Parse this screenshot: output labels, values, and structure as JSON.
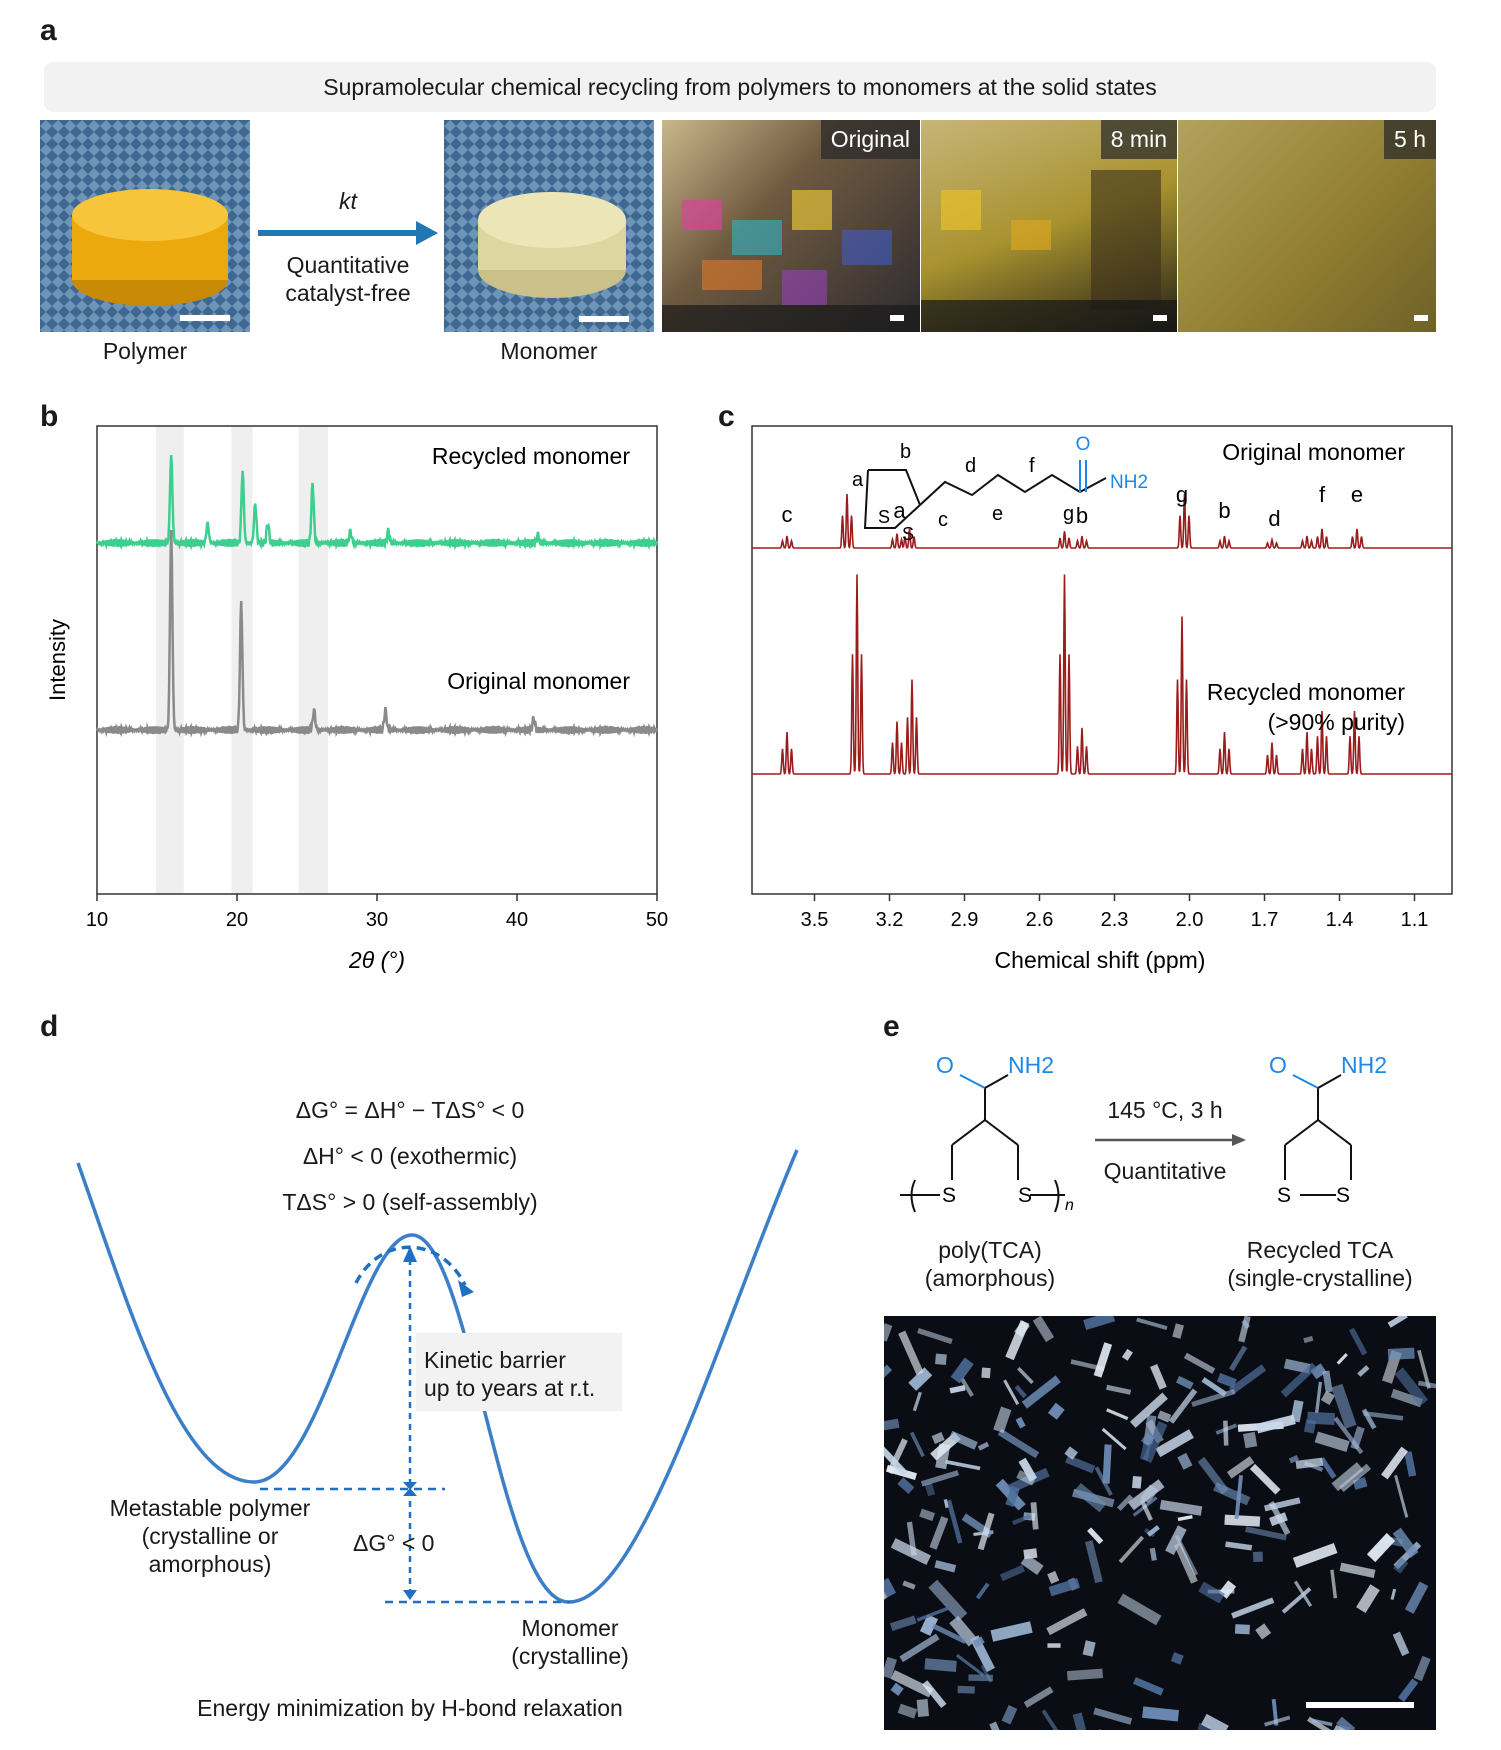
{
  "panel_labels": {
    "a": "a",
    "b": "b",
    "c": "c",
    "d": "d",
    "e": "e"
  },
  "panel_a": {
    "banner": "Supramolecular chemical recycling from polymers to monomers at the solid states",
    "arrow_top": "kt",
    "arrow_bottom_1": "Quantitative",
    "arrow_bottom_2": "catalyst-free",
    "polymer_caption": "Polymer",
    "monomer_caption": "Monomer",
    "micrograph_tags": [
      "Original",
      "8 min",
      "5 h"
    ]
  },
  "panel_b": {
    "ylabel": "Intensity",
    "xlabel": "2θ (°)",
    "xticks": [
      "10",
      "20",
      "30",
      "40",
      "50"
    ],
    "recycled_label": "Recycled monomer",
    "original_label": "Original monomer"
  },
  "panel_c": {
    "xlabel": "Chemical shift (ppm)",
    "xticks": [
      "3.5",
      "3.2",
      "2.9",
      "2.6",
      "2.3",
      "2.0",
      "1.7",
      "1.4",
      "1.1"
    ],
    "original_label": "Original monomer",
    "recycled_label_1": "Recycled monomer",
    "recycled_label_2": "(>90% purity)",
    "structure_letters": [
      "a",
      "b",
      "c",
      "d",
      "e",
      "f",
      "g"
    ],
    "peak_letters": [
      "c",
      "a",
      "b",
      "g",
      "b",
      "d",
      "f",
      "e"
    ],
    "nh2": "NH2",
    "oxygen": "O",
    "sulfur": "S"
  },
  "panel_d": {
    "eq1": "ΔG° = ΔH° − TΔS° < 0",
    "eq2": "ΔH° < 0 (exothermic)",
    "eq3": "TΔS° > 0 (self-assembly)",
    "barrier_1": "Kinetic barrier",
    "barrier_2": "up to years at r.t.",
    "meta_1": "Metastable polymer",
    "meta_2": "(crystalline or",
    "meta_3": "amorphous)",
    "dg": "ΔG° < 0",
    "mono_1": "Monomer",
    "mono_2": "(crystalline)",
    "bottom": "Energy minimization by H-bond relaxation"
  },
  "panel_e": {
    "condition": "145 °C, 3 h",
    "quantitative": "Quantitative",
    "left_1": "poly(TCA)",
    "left_2": "(amorphous)",
    "right_1": "Recycled TCA",
    "right_2": "(single-crystalline)",
    "n": "n"
  },
  "colors": {
    "green": "#3ecf8e",
    "gray": "#8a8a8a",
    "nmr": "#9b1c1c",
    "blue": "#3a7fc8",
    "chem_blue": "#1e88e5"
  },
  "chart_data": [
    {
      "type": "line",
      "title": "",
      "xlabel": "2θ (°)",
      "ylabel": "Intensity",
      "xlim": [
        10,
        50
      ],
      "shaded_ranges": [
        [
          14.2,
          16.2
        ],
        [
          19.6,
          21.1
        ],
        [
          24.4,
          26.5
        ]
      ],
      "series": [
        {
          "name": "Recycled monomer",
          "baseline": 0.72,
          "peaks": [
            [
              15.3,
              0.22
            ],
            [
              17.9,
              0.05
            ],
            [
              20.4,
              0.18
            ],
            [
              21.3,
              0.1
            ],
            [
              22.2,
              0.05
            ],
            [
              25.4,
              0.15
            ],
            [
              28.1,
              0.03
            ],
            [
              30.8,
              0.03
            ],
            [
              41.5,
              0.02
            ]
          ]
        },
        {
          "name": "Original monomer",
          "baseline": 0.0,
          "peaks": [
            [
              15.3,
              0.5
            ],
            [
              20.3,
              0.32
            ],
            [
              25.5,
              0.05
            ],
            [
              30.6,
              0.05
            ],
            [
              41.2,
              0.03
            ]
          ]
        }
      ]
    },
    {
      "type": "line",
      "title": "",
      "xlabel": "Chemical shift (ppm)",
      "xlim": [
        3.75,
        0.95
      ],
      "series": [
        {
          "name": "Original monomer",
          "peaks": [
            [
              3.61,
              0.1
            ],
            [
              3.37,
              0.45
            ],
            [
              3.17,
              0.12
            ],
            [
              3.12,
              0.16
            ],
            [
              2.5,
              0.14
            ],
            [
              2.43,
              0.1
            ],
            [
              2.02,
              0.45
            ],
            [
              1.86,
              0.1
            ],
            [
              1.67,
              0.07
            ],
            [
              1.53,
              0.1
            ],
            [
              1.47,
              0.16
            ],
            [
              1.33,
              0.16
            ]
          ]
        },
        {
          "name": "Recycled monomer (>90% purity)",
          "peaks": [
            [
              3.61,
              0.2
            ],
            [
              3.33,
              0.95
            ],
            [
              3.17,
              0.25
            ],
            [
              3.11,
              0.45
            ],
            [
              2.5,
              0.95
            ],
            [
              2.43,
              0.22
            ],
            [
              2.03,
              0.75
            ],
            [
              1.86,
              0.2
            ],
            [
              1.67,
              0.15
            ],
            [
              1.53,
              0.2
            ],
            [
              1.47,
              0.3
            ],
            [
              1.34,
              0.3
            ]
          ]
        }
      ]
    }
  ]
}
